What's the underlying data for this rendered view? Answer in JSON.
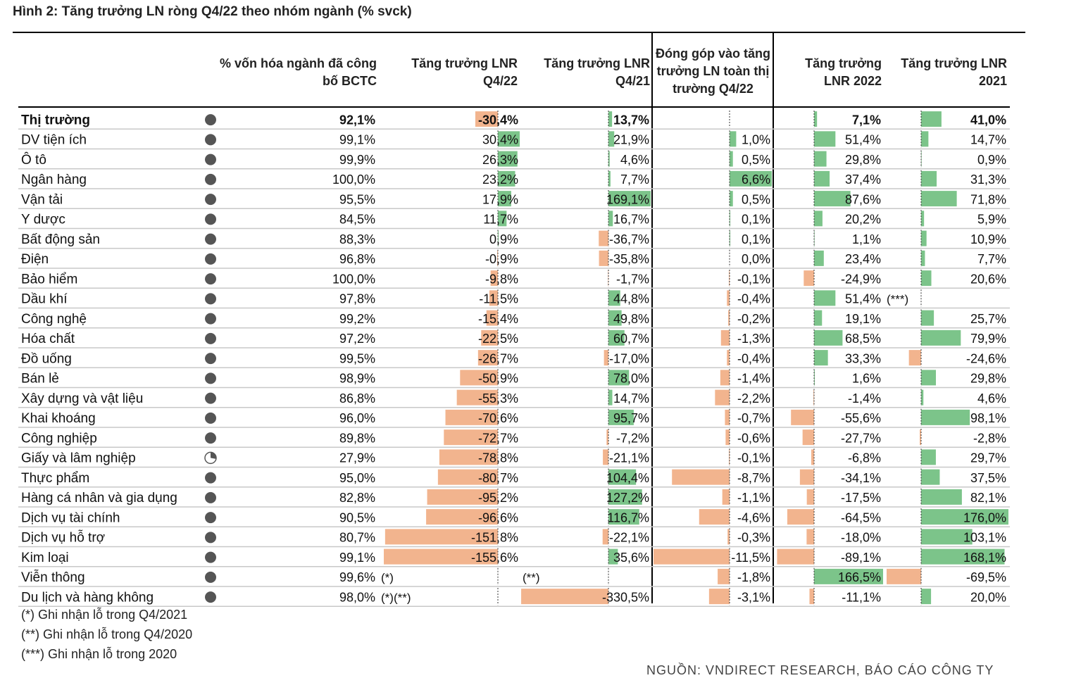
{
  "title": "Hình 2: Tăng trưởng LN ròng Q4/22 theo nhóm ngành (% svck)",
  "headers": {
    "cap": [
      "% vốn hóa ngành đã công",
      "bố BCTC"
    ],
    "q422": [
      "Tăng trưởng LNR",
      "Q4/22"
    ],
    "q421": [
      "Tăng trưởng LNR",
      "Q4/21"
    ],
    "contrib": [
      "Đóng góp vào tăng",
      "trưởng LN toàn thị",
      "trường Q4/22"
    ],
    "y2022": [
      "Tăng trưởng",
      "LNR 2022"
    ],
    "y2021": [
      "Tăng trưởng LNR",
      "2021"
    ]
  },
  "notes": [
    "(*) Ghi nhận lỗ trong Q4/2021",
    "(**) Ghi nhận lỗ trong Q4/2020",
    "(***) Ghi nhận lỗ trong 2020"
  ],
  "source": "NGUỒN: VNDIRECT RESEARCH, BÁO CÁO CÔNG TY",
  "colors": {
    "positive": "#7cc48a",
    "negative": "#f2b48e",
    "grid": "#c8c8c8",
    "pie": "#555555"
  },
  "chart_data": {
    "type": "table",
    "columns": [
      "% vốn hóa ngành đã công bố BCTC",
      "Tăng trưởng LNR Q4/22",
      "Tăng trưởng LNR Q4/21",
      "Đóng góp vào tăng trưởng LN toàn thị trường Q4/22",
      "Tăng trưởng LNR 2022",
      "Tăng trưởng LNR 2021"
    ],
    "rows": [
      {
        "name": "Thị trường",
        "bold": true,
        "cap": 92.1,
        "cap_label": "92,1%",
        "cap_note": "",
        "q422": -30.4,
        "q422_label": "-30,4%",
        "q421": 13.7,
        "q421_label": "13,7%",
        "q421_note": "",
        "contrib": null,
        "contrib_label": "",
        "y2022": 7.1,
        "y2022_label": "7,1%",
        "y2022_note": "",
        "y2021": 41.0,
        "y2021_label": "41,0%"
      },
      {
        "name": "DV tiện ích",
        "bold": false,
        "cap": 99.1,
        "cap_label": "99,1%",
        "cap_note": "",
        "q422": 30.4,
        "q422_label": "30,4%",
        "q421": 21.9,
        "q421_label": "21,9%",
        "q421_note": "",
        "contrib": 1.0,
        "contrib_label": "1,0%",
        "y2022": 51.4,
        "y2022_label": "51,4%",
        "y2022_note": "",
        "y2021": 14.7,
        "y2021_label": "14,7%"
      },
      {
        "name": "Ô tô",
        "bold": false,
        "cap": 99.9,
        "cap_label": "99,9%",
        "cap_note": "",
        "q422": 26.3,
        "q422_label": "26,3%",
        "q421": 4.6,
        "q421_label": "4,6%",
        "q421_note": "",
        "contrib": 0.5,
        "contrib_label": "0,5%",
        "y2022": 29.8,
        "y2022_label": "29,8%",
        "y2022_note": "",
        "y2021": 0.9,
        "y2021_label": "0,9%"
      },
      {
        "name": "Ngân hàng",
        "bold": false,
        "cap": 100.0,
        "cap_label": "100,0%",
        "cap_note": "",
        "q422": 23.2,
        "q422_label": "23,2%",
        "q421": 7.7,
        "q421_label": "7,7%",
        "q421_note": "",
        "contrib": 6.6,
        "contrib_label": "6,6%",
        "y2022": 37.4,
        "y2022_label": "37,4%",
        "y2022_note": "",
        "y2021": 31.3,
        "y2021_label": "31,3%"
      },
      {
        "name": "Vận tải",
        "bold": false,
        "cap": 95.5,
        "cap_label": "95,5%",
        "cap_note": "",
        "q422": 17.9,
        "q422_label": "17,9%",
        "q421": 169.1,
        "q421_label": "169,1%",
        "q421_note": "",
        "contrib": 0.5,
        "contrib_label": "0,5%",
        "y2022": 87.6,
        "y2022_label": "87,6%",
        "y2022_note": "",
        "y2021": 71.8,
        "y2021_label": "71,8%"
      },
      {
        "name": "Y dược",
        "bold": false,
        "cap": 84.5,
        "cap_label": "84,5%",
        "cap_note": "",
        "q422": 11.7,
        "q422_label": "11,7%",
        "q421": 16.7,
        "q421_label": "16,7%",
        "q421_note": "",
        "contrib": 0.1,
        "contrib_label": "0,1%",
        "y2022": 20.2,
        "y2022_label": "20,2%",
        "y2022_note": "",
        "y2021": 5.9,
        "y2021_label": "5,9%"
      },
      {
        "name": "Bất động sản",
        "bold": false,
        "cap": 88.3,
        "cap_label": "88,3%",
        "cap_note": "",
        "q422": 0.9,
        "q422_label": "0,9%",
        "q421": -36.7,
        "q421_label": "-36,7%",
        "q421_note": "",
        "contrib": 0.1,
        "contrib_label": "0,1%",
        "y2022": 1.1,
        "y2022_label": "1,1%",
        "y2022_note": "",
        "y2021": 10.9,
        "y2021_label": "10,9%"
      },
      {
        "name": "Điện",
        "bold": false,
        "cap": 96.8,
        "cap_label": "96,8%",
        "cap_note": "",
        "q422": -0.9,
        "q422_label": "-0,9%",
        "q421": -35.8,
        "q421_label": "-35,8%",
        "q421_note": "",
        "contrib": 0.0,
        "contrib_label": "0,0%",
        "y2022": 23.4,
        "y2022_label": "23,4%",
        "y2022_note": "",
        "y2021": 7.7,
        "y2021_label": "7,7%"
      },
      {
        "name": "Bảo hiểm",
        "bold": false,
        "cap": 100.0,
        "cap_label": "100,0%",
        "cap_note": "",
        "q422": -9.8,
        "q422_label": "-9,8%",
        "q421": -1.7,
        "q421_label": "-1,7%",
        "q421_note": "",
        "contrib": -0.1,
        "contrib_label": "-0,1%",
        "y2022": -24.9,
        "y2022_label": "-24,9%",
        "y2022_note": "",
        "y2021": 20.6,
        "y2021_label": "20,6%"
      },
      {
        "name": "Dầu khí",
        "bold": false,
        "cap": 97.8,
        "cap_label": "97,8%",
        "cap_note": "",
        "q422": -11.5,
        "q422_label": "-11,5%",
        "q421": 44.8,
        "q421_label": "44,8%",
        "q421_note": "",
        "contrib": -0.4,
        "contrib_label": "-0,4%",
        "y2022": 51.4,
        "y2022_label": "51,4%",
        "y2022_note": "(***)",
        "y2021": null,
        "y2021_label": ""
      },
      {
        "name": "Công nghệ",
        "bold": false,
        "cap": 99.2,
        "cap_label": "99,2%",
        "cap_note": "",
        "q422": -15.4,
        "q422_label": "-15,4%",
        "q421": 49.8,
        "q421_label": "49,8%",
        "q421_note": "",
        "contrib": -0.2,
        "contrib_label": "-0,2%",
        "y2022": 19.1,
        "y2022_label": "19,1%",
        "y2022_note": "",
        "y2021": 25.7,
        "y2021_label": "25,7%"
      },
      {
        "name": "Hóa chất",
        "bold": false,
        "cap": 97.2,
        "cap_label": "97,2%",
        "cap_note": "",
        "q422": -22.5,
        "q422_label": "-22,5%",
        "q421": 60.7,
        "q421_label": "60,7%",
        "q421_note": "",
        "contrib": -1.3,
        "contrib_label": "-1,3%",
        "y2022": 68.5,
        "y2022_label": "68,5%",
        "y2022_note": "",
        "y2021": 79.9,
        "y2021_label": "79,9%"
      },
      {
        "name": "Đồ uống",
        "bold": false,
        "cap": 99.5,
        "cap_label": "99,5%",
        "cap_note": "",
        "q422": -26.7,
        "q422_label": "-26,7%",
        "q421": -17.0,
        "q421_label": "-17,0%",
        "q421_note": "",
        "contrib": -0.4,
        "contrib_label": "-0,4%",
        "y2022": 33.3,
        "y2022_label": "33,3%",
        "y2022_note": "",
        "y2021": -24.6,
        "y2021_label": "-24,6%"
      },
      {
        "name": "Bán lẻ",
        "bold": false,
        "cap": 98.9,
        "cap_label": "98,9%",
        "cap_note": "",
        "q422": -50.9,
        "q422_label": "-50,9%",
        "q421": 78.0,
        "q421_label": "78,0%",
        "q421_note": "",
        "contrib": -1.4,
        "contrib_label": "-1,4%",
        "y2022": 1.6,
        "y2022_label": "1,6%",
        "y2022_note": "",
        "y2021": 29.8,
        "y2021_label": "29,8%"
      },
      {
        "name": "Xây dựng và vật liệu",
        "bold": false,
        "cap": 86.8,
        "cap_label": "86,8%",
        "cap_note": "",
        "q422": -55.3,
        "q422_label": "-55,3%",
        "q421": 14.7,
        "q421_label": "14,7%",
        "q421_note": "",
        "contrib": -2.2,
        "contrib_label": "-2,2%",
        "y2022": -1.4,
        "y2022_label": "-1,4%",
        "y2022_note": "",
        "y2021": 4.6,
        "y2021_label": "4,6%"
      },
      {
        "name": "Khai khoáng",
        "bold": false,
        "cap": 96.0,
        "cap_label": "96,0%",
        "cap_note": "",
        "q422": -70.6,
        "q422_label": "-70,6%",
        "q421": 95.7,
        "q421_label": "95,7%",
        "q421_note": "",
        "contrib": -0.7,
        "contrib_label": "-0,7%",
        "y2022": -55.6,
        "y2022_label": "-55,6%",
        "y2022_note": "",
        "y2021": 98.1,
        "y2021_label": "98,1%"
      },
      {
        "name": "Công nghiệp",
        "bold": false,
        "cap": 89.8,
        "cap_label": "89,8%",
        "cap_note": "",
        "q422": -72.7,
        "q422_label": "-72,7%",
        "q421": -7.2,
        "q421_label": "-7,2%",
        "q421_note": "",
        "contrib": -0.6,
        "contrib_label": "-0,6%",
        "y2022": -27.7,
        "y2022_label": "-27,7%",
        "y2022_note": "",
        "y2021": -2.8,
        "y2021_label": "-2,8%"
      },
      {
        "name": "Giấy và lâm nghiệp",
        "bold": false,
        "cap": 27.9,
        "cap_label": "27,9%",
        "cap_note": "",
        "q422": -78.8,
        "q422_label": "-78,8%",
        "q421": -21.1,
        "q421_label": "-21,1%",
        "q421_note": "",
        "contrib": -0.1,
        "contrib_label": "-0,1%",
        "y2022": -6.8,
        "y2022_label": "-6,8%",
        "y2022_note": "",
        "y2021": 29.7,
        "y2021_label": "29,7%"
      },
      {
        "name": "Thực phẩm",
        "bold": false,
        "cap": 95.0,
        "cap_label": "95,0%",
        "cap_note": "",
        "q422": -80.7,
        "q422_label": "-80,7%",
        "q421": 104.4,
        "q421_label": "104,4%",
        "q421_note": "",
        "contrib": -8.7,
        "contrib_label": "-8,7%",
        "y2022": -34.1,
        "y2022_label": "-34,1%",
        "y2022_note": "",
        "y2021": 37.5,
        "y2021_label": "37,5%"
      },
      {
        "name": "Hàng cá nhân và gia dụng",
        "bold": false,
        "cap": 82.8,
        "cap_label": "82,8%",
        "cap_note": "",
        "q422": -95.2,
        "q422_label": "-95,2%",
        "q421": 127.2,
        "q421_label": "127,2%",
        "q421_note": "",
        "contrib": -1.1,
        "contrib_label": "-1,1%",
        "y2022": -17.5,
        "y2022_label": "-17,5%",
        "y2022_note": "",
        "y2021": 82.1,
        "y2021_label": "82,1%"
      },
      {
        "name": "Dịch vụ tài chính",
        "bold": false,
        "cap": 90.5,
        "cap_label": "90,5%",
        "cap_note": "",
        "q422": -96.6,
        "q422_label": "-96,6%",
        "q421": 116.7,
        "q421_label": "116,7%",
        "q421_note": "",
        "contrib": -4.6,
        "contrib_label": "-4,6%",
        "y2022": -64.5,
        "y2022_label": "-64,5%",
        "y2022_note": "",
        "y2021": 176.0,
        "y2021_label": "176,0%"
      },
      {
        "name": "Dịch vụ hỗ trợ",
        "bold": false,
        "cap": 80.7,
        "cap_label": "80,7%",
        "cap_note": "",
        "q422": -151.8,
        "q422_label": "-151,8%",
        "q421": -22.1,
        "q421_label": "-22,1%",
        "q421_note": "",
        "contrib": -0.3,
        "contrib_label": "-0,3%",
        "y2022": -18.0,
        "y2022_label": "-18,0%",
        "y2022_note": "",
        "y2021": 103.1,
        "y2021_label": "103,1%"
      },
      {
        "name": "Kim loại",
        "bold": false,
        "cap": 99.1,
        "cap_label": "99,1%",
        "cap_note": "",
        "q422": -155.6,
        "q422_label": "-155,6%",
        "q421": 35.6,
        "q421_label": "35,6%",
        "q421_note": "",
        "contrib": -11.5,
        "contrib_label": "-11,5%",
        "y2022": -89.1,
        "y2022_label": "-89,1%",
        "y2022_note": "",
        "y2021": 168.1,
        "y2021_label": "168,1%"
      },
      {
        "name": "Viễn thông",
        "bold": false,
        "cap": 99.6,
        "cap_label": "99,6%",
        "cap_note": "(*)",
        "q422": null,
        "q422_label": "",
        "q421": null,
        "q421_label": "",
        "q421_note": "(**)",
        "contrib": -1.8,
        "contrib_label": "-1,8%",
        "y2022": 166.5,
        "y2022_label": "166,5%",
        "y2022_note": "",
        "y2021": -69.5,
        "y2021_label": "-69,5%"
      },
      {
        "name": "Du lịch và hàng không",
        "bold": false,
        "cap": 98.0,
        "cap_label": "98,0%",
        "cap_note": "(*)(**)",
        "q422": null,
        "q422_label": "",
        "q421": -330.5,
        "q421_label": "-330,5%",
        "q421_note": "",
        "contrib": -3.1,
        "contrib_label": "-3,1%",
        "y2022": -11.1,
        "y2022_label": "-11,1%",
        "y2022_note": "",
        "y2021": 20.0,
        "y2021_label": "20,0%"
      }
    ]
  }
}
